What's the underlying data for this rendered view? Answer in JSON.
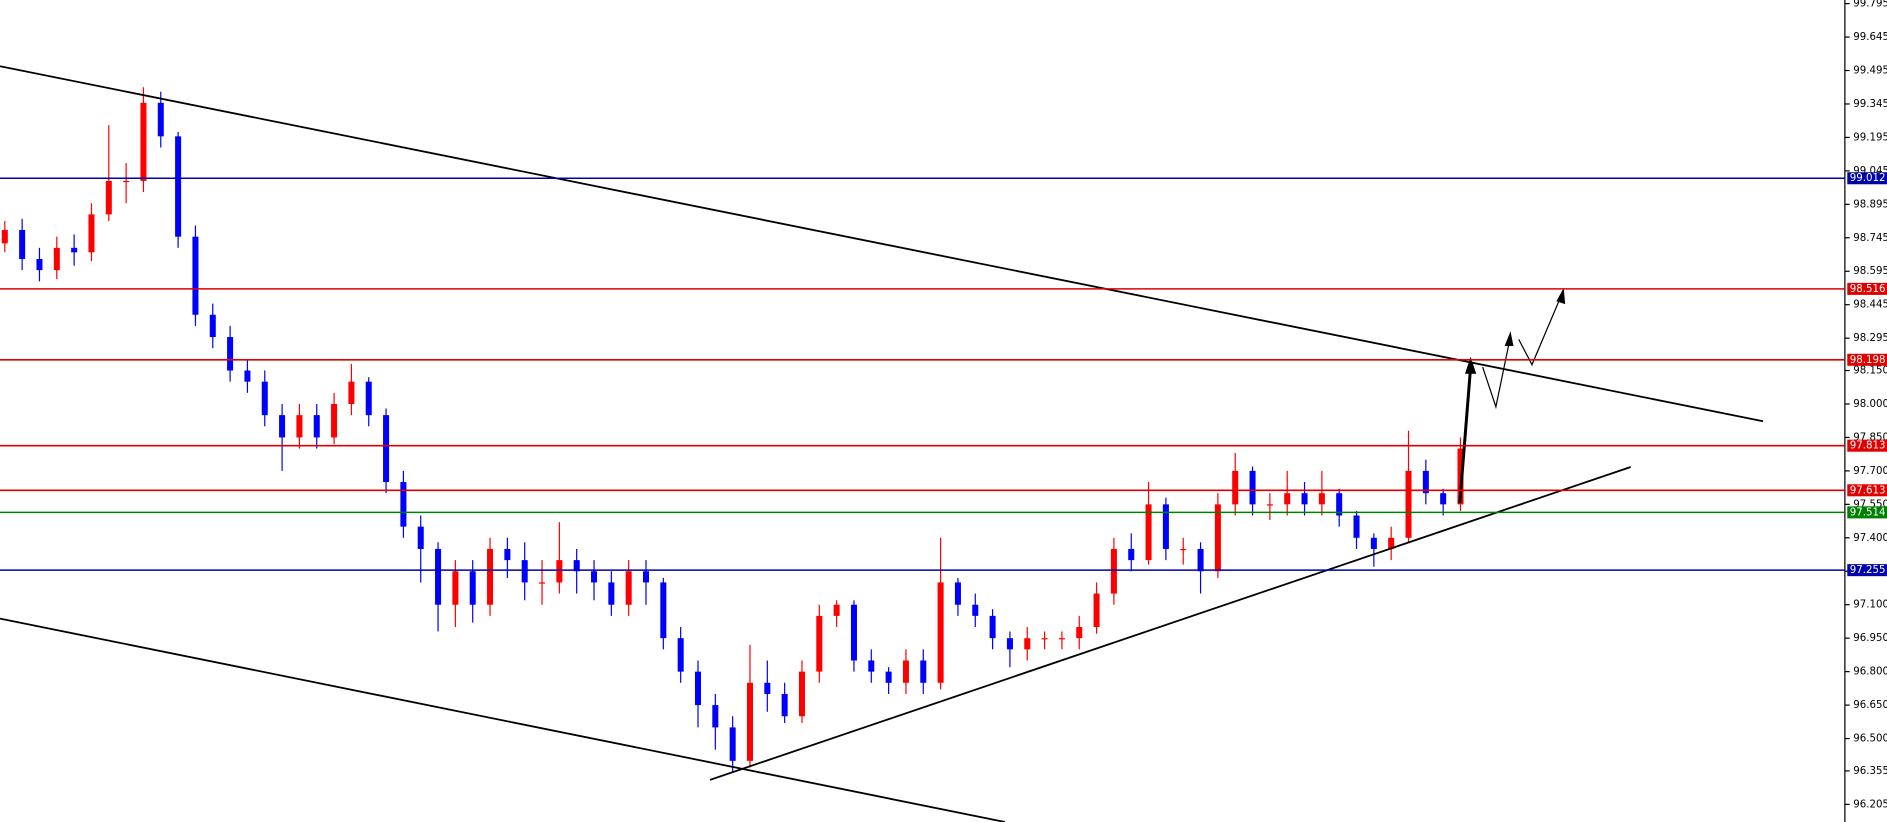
{
  "chart_data": {
    "type": "candlestick",
    "up_color": "#ff0000",
    "down_color": "#0000ff",
    "ylim": [
      96.126,
      99.811
    ],
    "yticks": [
      99.795,
      99.645,
      99.495,
      99.345,
      99.195,
      99.045,
      98.895,
      98.745,
      98.595,
      98.445,
      98.295,
      {
        "value": 98.15,
        "label": "98.150"
      },
      {
        "value": 98,
        "label": "98.000"
      },
      {
        "value": 97.85,
        "label": "97.850"
      },
      {
        "value": 97.7,
        "label": "97.700"
      },
      {
        "value": 97.55,
        "label": "97.550"
      },
      {
        "value": 97.4,
        "label": "97.400"
      },
      {
        "value": 97.25,
        "label": "97.250"
      },
      {
        "value": 97.1,
        "label": "97.100"
      },
      {
        "value": 96.95,
        "label": "96.950"
      },
      {
        "value": 96.8,
        "label": "96.800"
      },
      {
        "value": 96.65,
        "label": "96.650"
      },
      {
        "value": 96.5,
        "label": "96.500"
      },
      96.355,
      96.205
    ],
    "levels": [
      {
        "value": 99.012,
        "color": "#0000aa"
      },
      {
        "value": 98.516,
        "color": "#e00000"
      },
      {
        "value": 98.198,
        "color": "#e00000"
      },
      {
        "value": 97.813,
        "color": "#e00000"
      },
      {
        "value": 97.613,
        "color": "#e00000"
      },
      {
        "value": 97.514,
        "color": "#008000"
      },
      {
        "value": 97.255,
        "color": "#0000aa"
      }
    ],
    "open": [
      98.72,
      98.78,
      98.65,
      98.6,
      98.7,
      98.68,
      98.85,
      99.0,
      99.0,
      99.35,
      99.2,
      98.75,
      98.4,
      98.3,
      98.15,
      98.1,
      97.95,
      97.85,
      97.95,
      97.85,
      98.0,
      98.1,
      97.95,
      97.65,
      97.45,
      97.35,
      97.1,
      97.25,
      97.1,
      97.35,
      97.3,
      97.2,
      97.2,
      97.3,
      97.25,
      97.2,
      97.1,
      97.25,
      97.2,
      96.95,
      96.8,
      96.65,
      96.55,
      96.4,
      96.75,
      96.7,
      96.6,
      96.8,
      97.05,
      97.1,
      96.85,
      96.8,
      96.75,
      96.85,
      96.75,
      97.2,
      97.1,
      97.05,
      96.95,
      96.9,
      96.95,
      96.95,
      96.95,
      97.0,
      97.15,
      97.35,
      97.3,
      97.55,
      97.35,
      97.35,
      97.25,
      97.55,
      97.7,
      97.55,
      97.55,
      97.6,
      97.55,
      97.6,
      97.5,
      97.4,
      97.35,
      97.4,
      97.7,
      97.6,
      97.55
    ],
    "high": [
      98.82,
      98.83,
      98.7,
      98.75,
      98.76,
      98.9,
      99.25,
      99.08,
      99.42,
      99.4,
      99.22,
      98.8,
      98.45,
      98.35,
      98.2,
      98.15,
      98.0,
      98.0,
      98.0,
      98.05,
      98.18,
      98.12,
      97.98,
      97.7,
      97.5,
      97.38,
      97.3,
      97.3,
      97.4,
      97.4,
      97.38,
      97.3,
      97.47,
      97.35,
      97.3,
      97.25,
      97.3,
      97.3,
      97.22,
      97.0,
      96.85,
      96.7,
      96.6,
      96.92,
      96.85,
      96.75,
      96.85,
      97.1,
      97.12,
      97.12,
      96.9,
      96.82,
      96.9,
      96.9,
      97.4,
      97.22,
      97.15,
      97.08,
      96.98,
      97.0,
      96.98,
      96.98,
      97.05,
      97.2,
      97.4,
      97.42,
      97.65,
      97.58,
      97.4,
      97.38,
      97.6,
      97.78,
      97.72,
      97.6,
      97.7,
      97.65,
      97.7,
      97.62,
      97.52,
      97.42,
      97.45,
      97.88,
      97.75,
      97.62,
      97.85
    ],
    "low": [
      98.68,
      98.6,
      98.55,
      98.56,
      98.62,
      98.64,
      98.82,
      98.9,
      98.95,
      99.15,
      98.7,
      98.35,
      98.25,
      98.1,
      98.05,
      97.9,
      97.7,
      97.8,
      97.8,
      97.82,
      97.95,
      97.9,
      97.6,
      97.4,
      97.2,
      96.98,
      97.0,
      97.02,
      97.05,
      97.22,
      97.12,
      97.1,
      97.15,
      97.15,
      97.12,
      97.05,
      97.05,
      97.1,
      96.9,
      96.75,
      96.55,
      96.45,
      96.35,
      96.37,
      96.62,
      96.57,
      96.57,
      96.75,
      97.0,
      96.8,
      96.75,
      96.7,
      96.7,
      96.7,
      96.72,
      97.05,
      97.0,
      96.9,
      96.82,
      96.85,
      96.9,
      96.9,
      96.9,
      96.97,
      97.1,
      97.25,
      97.28,
      97.3,
      97.28,
      97.15,
      97.22,
      97.5,
      97.5,
      97.48,
      97.5,
      97.5,
      97.5,
      97.45,
      97.35,
      97.27,
      97.3,
      97.38,
      97.55,
      97.5,
      97.52
    ],
    "close": [
      98.78,
      98.65,
      98.6,
      98.7,
      98.68,
      98.85,
      99.0,
      99.0,
      99.35,
      99.2,
      98.75,
      98.4,
      98.3,
      98.15,
      98.1,
      97.95,
      97.85,
      97.95,
      97.85,
      98.0,
      98.1,
      97.95,
      97.65,
      97.45,
      97.35,
      97.1,
      97.25,
      97.1,
      97.35,
      97.3,
      97.2,
      97.2,
      97.3,
      97.25,
      97.2,
      97.1,
      97.25,
      97.2,
      96.95,
      96.8,
      96.65,
      96.55,
      96.4,
      96.75,
      96.7,
      96.6,
      96.8,
      97.05,
      97.1,
      96.85,
      96.8,
      96.75,
      96.85,
      96.75,
      97.2,
      97.1,
      97.05,
      96.95,
      96.9,
      96.95,
      96.95,
      96.95,
      97.0,
      97.15,
      97.35,
      97.3,
      97.55,
      97.35,
      97.35,
      97.25,
      97.55,
      97.7,
      97.55,
      97.55,
      97.6,
      97.55,
      97.6,
      97.5,
      97.4,
      97.35,
      97.4,
      97.7,
      97.6,
      97.55,
      97.8
    ]
  }
}
